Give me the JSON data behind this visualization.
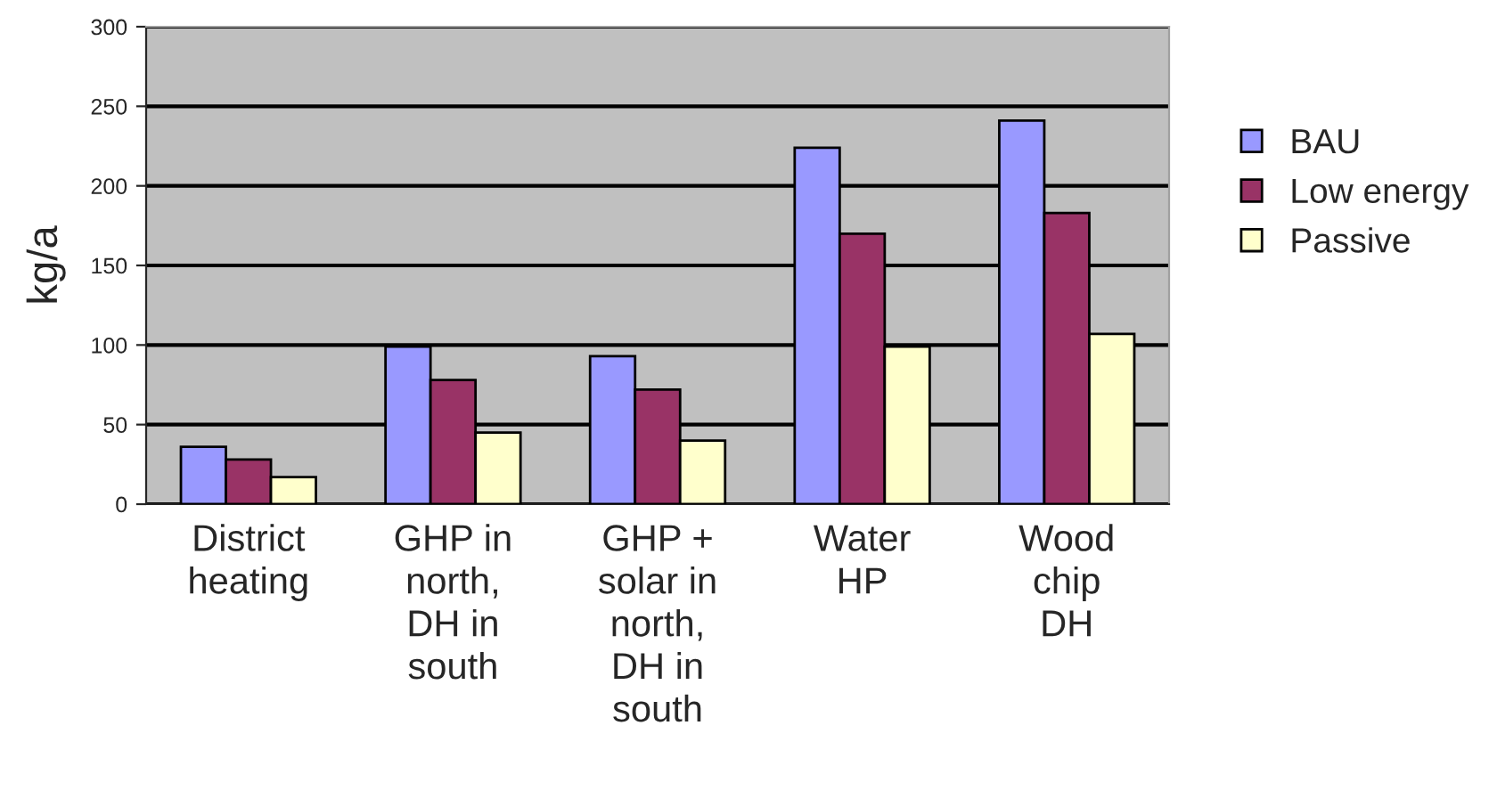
{
  "chart_data": {
    "type": "bar",
    "ylabel": "kg/a",
    "categories": [
      "District\nheating",
      "GHP in\nnorth,\nDH in\nsouth",
      "GHP +\nsolar in\nnorth,\nDH in\nsouth",
      "Water\nHP",
      "Wood\nchip\nDH"
    ],
    "series": [
      {
        "name": "BAU",
        "color": "#9999ff",
        "values": [
          36,
          99,
          93,
          224,
          241
        ]
      },
      {
        "name": "Low energy",
        "color": "#993366",
        "values": [
          28,
          78,
          72,
          170,
          183
        ]
      },
      {
        "name": "Passive",
        "color": "#ffffcc",
        "values": [
          17,
          45,
          40,
          99,
          107
        ]
      }
    ],
    "ylim": [
      0,
      300
    ],
    "yticks": [
      0,
      50,
      100,
      150,
      200,
      250,
      300
    ],
    "grid": "y",
    "legend": "right"
  }
}
